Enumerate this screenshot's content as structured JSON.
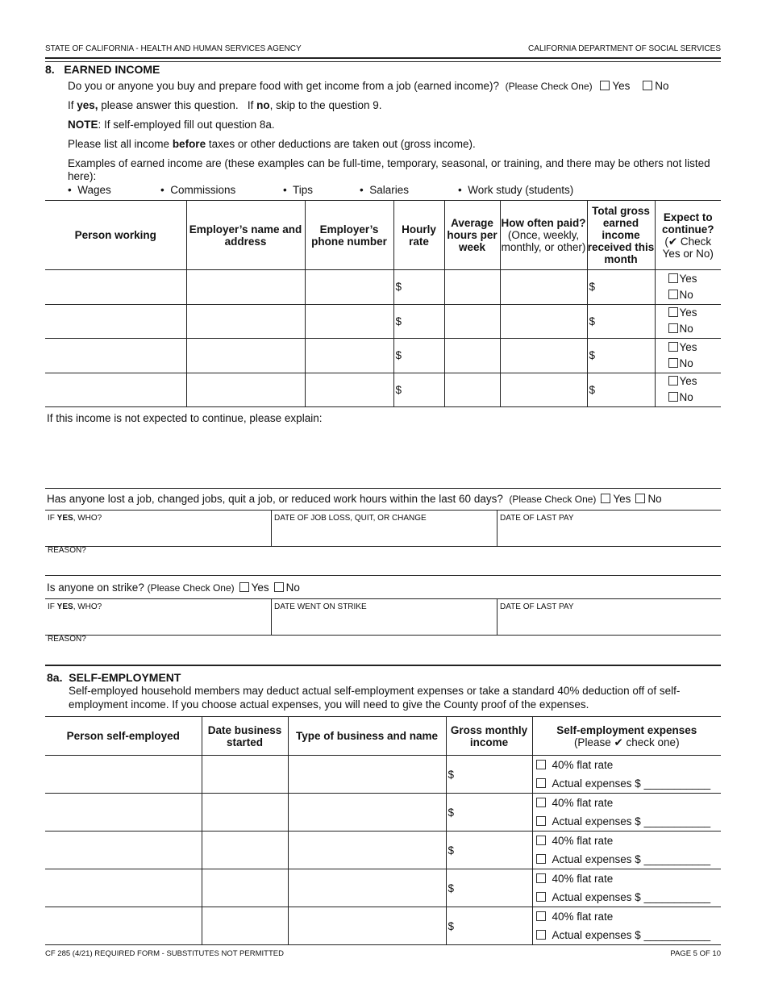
{
  "header": {
    "left": "STATE OF CALIFORNIA - HEALTH AND HUMAN SERVICES AGENCY",
    "right": "CALIFORNIA DEPARTMENT OF SOCIAL SERVICES"
  },
  "section8": {
    "title": "8.   EARNED INCOME",
    "question": "Do you or anyone you buy and prepare food with get income from a job (earned income)?",
    "check_one": "(Please Check One)",
    "yes": "Yes",
    "no": "No",
    "if_yes_1": "If ",
    "if_yes_bold": "yes,",
    "if_yes_2": " please answer this question.   If ",
    "if_no_bold": "no",
    "if_yes_3": ", skip to the question 9.",
    "note_bold": "NOTE",
    "note_rest": ":  If self-employed fill out question 8a.",
    "gross_1": "Please list all income ",
    "gross_bold": "before",
    "gross_2": " taxes or other deductions are taken out (gross income).",
    "examples": "Examples of earned income are (these examples can be full-time, temporary, seasonal, or training, and there may be others not listed here):",
    "example_items": [
      "Wages",
      "Commissions",
      "Tips",
      "Salaries",
      "Work study (students)"
    ],
    "table": {
      "headers": [
        "Person working",
        "Employer’s name and address",
        "Employer’s phone number",
        "Hourly rate",
        "Average hours per week",
        "How often paid?",
        "(Once, weekly, monthly, or other)",
        "Total gross earned income received this month",
        "Expect to continue?",
        "(✔ Check Yes or No)"
      ],
      "dollar": "$",
      "yes": "Yes",
      "no": "No",
      "row_count": 4
    },
    "explain": "If this income is not expected to continue, please explain:"
  },
  "job_change": {
    "question": "Has anyone lost a job, changed jobs, quit a job, or reduced work hours within the last 60 days?",
    "check_one": "(Please Check One)",
    "yes": "Yes",
    "no": "No",
    "who_1": "IF ",
    "who_bold": "YES",
    "who_2": ", WHO?",
    "date_change": "DATE OF JOB LOSS, QUIT, OR CHANGE",
    "last_pay": "DATE OF LAST PAY",
    "reason": "REASON?"
  },
  "strike": {
    "question": "Is anyone on strike?",
    "check_one": "(Please Check One)",
    "yes": "Yes",
    "no": "No",
    "who_1": "IF ",
    "who_bold": "YES",
    "who_2": ", WHO?",
    "date_strike": "DATE WENT ON STRIKE",
    "last_pay": "DATE OF LAST PAY",
    "reason": "REASON?"
  },
  "section8a": {
    "title": "8a.  SELF-EMPLOYMENT",
    "desc": "Self-employed household members may deduct actual self-employment expenses or take a standard 40% deduction off of self-employment income.  If you choose actual expenses, you will need to give the County proof of the expenses.",
    "headers": [
      "Person self-employed",
      "Date business started",
      "Type of business and name",
      "Gross monthly income",
      "Self-employment expenses",
      "(Please ✔ check one)"
    ],
    "dollar": "$",
    "flat": "40% flat rate",
    "actual": "Actual expenses $ ___________",
    "row_count": 5
  },
  "footer": {
    "left": "CF 285 (4/21) REQUIRED FORM - SUBSTITUTES NOT PERMITTED",
    "right": "PAGE 5 OF 10"
  }
}
